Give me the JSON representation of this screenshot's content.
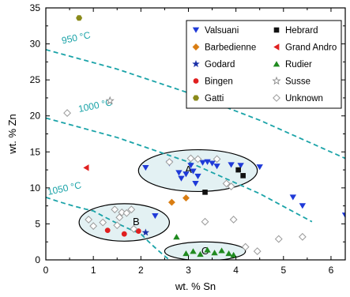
{
  "chart_data": {
    "type": "scatter",
    "xlabel": "wt. % Sn",
    "ylabel": "wt. % Zn",
    "xlim": [
      0,
      6.3
    ],
    "ylim": [
      0,
      35
    ],
    "x_ticks": [
      "0",
      "1",
      "2",
      "3",
      "4",
      "5",
      "6"
    ],
    "y_ticks": [
      "0",
      "5",
      "10",
      "15",
      "20",
      "25",
      "30",
      "35"
    ],
    "grid": false,
    "legend_position": "top-right",
    "isotherms": [
      {
        "label": "950 °C",
        "points": [
          [
            0,
            29.2
          ],
          [
            1.5,
            26.5
          ],
          [
            3,
            23.2
          ],
          [
            4.5,
            19.4
          ],
          [
            6.3,
            14.1
          ]
        ]
      },
      {
        "label": "1000 °C",
        "points": [
          [
            0,
            19.7
          ],
          [
            1.5,
            17.0
          ],
          [
            3,
            13.6
          ],
          [
            4.5,
            9.2
          ],
          [
            5.6,
            5.3
          ]
        ]
      },
      {
        "label": "1050 °C",
        "points": [
          [
            0,
            8.7
          ],
          [
            1,
            6.8
          ],
          [
            2,
            3.6
          ],
          [
            2.6,
            0
          ]
        ]
      }
    ],
    "regions": [
      {
        "label": "A",
        "cx": 3.2,
        "cy": 12.4,
        "rx": 1.25,
        "ry": 2.9
      },
      {
        "label": "B",
        "cx": 1.65,
        "cy": 5.2,
        "rx": 0.95,
        "ry": 2.6
      },
      {
        "label": "C",
        "cx": 3.35,
        "cy": 1.2,
        "rx": 0.85,
        "ry": 1.3
      }
    ],
    "series": [
      {
        "name": "Valsuani",
        "marker": "tri-down",
        "color": "#1f3ad8",
        "points": [
          [
            2.1,
            12.8
          ],
          [
            2.6,
            13.4
          ],
          [
            2.8,
            12.1
          ],
          [
            2.85,
            11.3
          ],
          [
            2.95,
            11.9
          ],
          [
            3.05,
            13.1
          ],
          [
            3.1,
            12.3
          ],
          [
            3.15,
            10.6
          ],
          [
            3.2,
            11.6
          ],
          [
            3.3,
            13.5
          ],
          [
            3.4,
            13.6
          ],
          [
            3.5,
            13.4
          ],
          [
            3.6,
            13.0
          ],
          [
            3.9,
            13.2
          ],
          [
            4.1,
            13.1
          ],
          [
            4.5,
            12.9
          ],
          [
            2.3,
            6.1
          ],
          [
            5.2,
            8.7
          ],
          [
            5.4,
            7.5
          ],
          [
            6.3,
            6.2
          ]
        ]
      },
      {
        "name": "Hebrard",
        "marker": "square",
        "color": "#111111",
        "points": [
          [
            4.05,
            12.5
          ],
          [
            4.15,
            11.7
          ],
          [
            3.35,
            9.4
          ]
        ]
      },
      {
        "name": "Barbedienne",
        "marker": "diamond",
        "color": "#d97d12",
        "points": [
          [
            2.65,
            8.0
          ],
          [
            2.95,
            8.6
          ]
        ]
      },
      {
        "name": "Grand Andro",
        "marker": "tri-left",
        "color": "#e02020",
        "points": [
          [
            0.85,
            12.8
          ]
        ]
      },
      {
        "name": "Godard",
        "marker": "star-filled",
        "color": "#1a2fa8",
        "points": [
          [
            2.1,
            3.8
          ]
        ]
      },
      {
        "name": "Rudier",
        "marker": "tri-up",
        "color": "#1f8a1f",
        "points": [
          [
            2.75,
            3.2
          ],
          [
            2.95,
            0.9
          ],
          [
            3.1,
            1.2
          ],
          [
            3.25,
            0.8
          ],
          [
            3.4,
            1.4
          ],
          [
            3.55,
            1.0
          ],
          [
            3.7,
            1.3
          ],
          [
            3.85,
            0.9
          ],
          [
            3.95,
            0.7
          ]
        ]
      },
      {
        "name": "Bingen",
        "marker": "circle-filled",
        "color": "#e01f1f",
        "points": [
          [
            1.3,
            4.1
          ],
          [
            1.65,
            3.6
          ],
          [
            1.95,
            4.0
          ]
        ]
      },
      {
        "name": "Susse",
        "marker": "star-open",
        "color": "#888888",
        "points": [
          [
            1.35,
            22.1
          ]
        ]
      },
      {
        "name": "Gatti",
        "marker": "hexagon",
        "color": "#8a8a1a",
        "points": [
          [
            0.7,
            33.6
          ]
        ]
      },
      {
        "name": "Unknown",
        "marker": "diamond-open",
        "color": "#9a9a9a",
        "points": [
          [
            0.45,
            20.4
          ],
          [
            0.9,
            5.6
          ],
          [
            1.2,
            5.2
          ],
          [
            1.45,
            7.0
          ],
          [
            1.55,
            5.9
          ],
          [
            1.6,
            6.6
          ],
          [
            1.7,
            6.5
          ],
          [
            1.8,
            7.0
          ],
          [
            1.5,
            4.8
          ],
          [
            1.85,
            4.3
          ],
          [
            1.0,
            4.7
          ],
          [
            2.6,
            13.6
          ],
          [
            3.05,
            14.1
          ],
          [
            3.2,
            14.0
          ],
          [
            3.6,
            14.0
          ],
          [
            3.8,
            10.6
          ],
          [
            3.9,
            10.2
          ],
          [
            3.35,
            5.3
          ],
          [
            3.95,
            5.6
          ],
          [
            4.2,
            1.8
          ],
          [
            4.45,
            1.2
          ],
          [
            4.9,
            2.9
          ],
          [
            5.4,
            3.2
          ]
        ]
      }
    ]
  }
}
